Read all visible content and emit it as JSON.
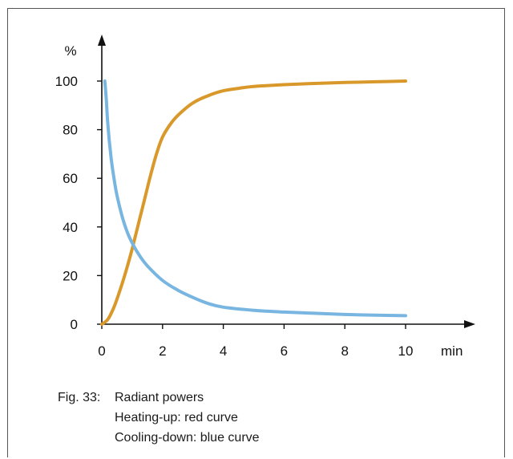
{
  "chart_data": {
    "type": "line",
    "ylabel": "%",
    "xlabel": "min",
    "xlim": [
      0,
      10
    ],
    "ylim": [
      0,
      100
    ],
    "xticks": [
      "0",
      "2",
      "4",
      "6",
      "8",
      "10"
    ],
    "yticks": [
      "0",
      "20",
      "40",
      "60",
      "80",
      "100"
    ],
    "grid": false,
    "legend": "none",
    "series": [
      {
        "color": "#d9982a",
        "x": [
          0,
          0.2,
          0.4,
          0.6,
          0.8,
          1.0,
          1.2,
          1.4,
          1.6,
          1.8,
          2.0,
          2.3,
          2.6,
          3.0,
          3.5,
          4.0,
          4.5,
          5,
          6,
          7,
          8,
          9,
          10
        ],
        "y": [
          0,
          2,
          7,
          14,
          22,
          31,
          41,
          51,
          61,
          70,
          77,
          83,
          87,
          91,
          94,
          96,
          97,
          97.8,
          98.5,
          99,
          99.4,
          99.7,
          100
        ]
      },
      {
        "color": "#78b6e1",
        "x": [
          0.1,
          0.15,
          0.2,
          0.3,
          0.4,
          0.5,
          0.7,
          0.9,
          1.2,
          1.5,
          2.0,
          2.5,
          3.0,
          3.5,
          4.0,
          5,
          6,
          7,
          8,
          9,
          10
        ],
        "y": [
          100,
          92,
          82,
          69,
          60,
          53,
          43,
          36,
          29,
          24,
          18,
          14,
          11,
          8.5,
          7,
          5.7,
          5,
          4.5,
          4,
          3.7,
          3.5
        ]
      }
    ]
  },
  "caption": {
    "label": "Fig. 33:",
    "lines": [
      "Radiant powers",
      "Heating-up: red curve",
      "Cooling-down: blue curve"
    ]
  }
}
